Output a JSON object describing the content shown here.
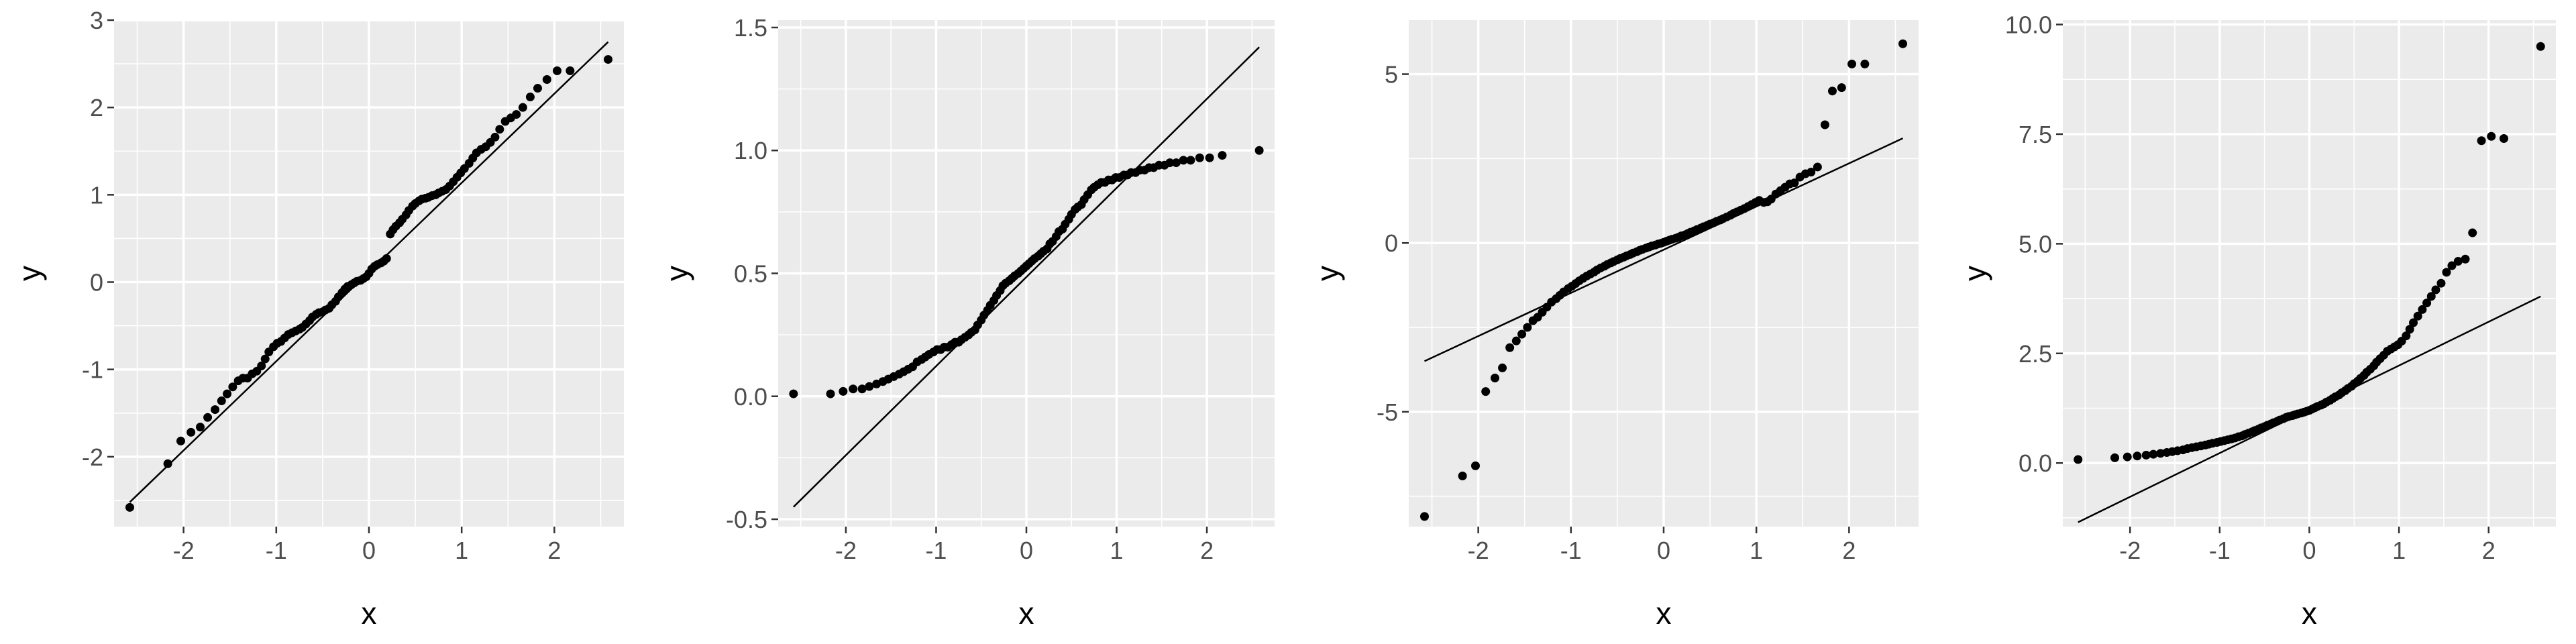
{
  "chart_data": [
    {
      "type": "scatter",
      "kind": "qq-plot",
      "xlabel": "x",
      "ylabel": "y",
      "xlim": [
        -2.75,
        2.75
      ],
      "ylim": [
        -2.8,
        3.0
      ],
      "xticks": [
        -2,
        -1,
        0,
        1,
        2
      ],
      "xtick_labels": [
        "-2",
        "-1",
        "0",
        "1",
        "2"
      ],
      "yticks": [
        -2,
        -1,
        0,
        1,
        2,
        3
      ],
      "ytick_labels": [
        "-2",
        "-1",
        "0",
        "1",
        "2",
        "3"
      ],
      "grid": true,
      "reference_line": {
        "x": [
          -2.58,
          2.58
        ],
        "y": [
          -2.52,
          2.75
        ]
      },
      "points": {
        "x": [
          -2.58,
          -2.17,
          -2.03,
          -1.92,
          -1.82,
          -1.74,
          -1.66,
          -1.59,
          -1.53,
          -1.47,
          -1.41,
          -1.36,
          -1.31,
          -1.26,
          -1.21,
          -1.16,
          -1.12,
          -1.08,
          -1.03,
          -0.99,
          -0.95,
          -0.91,
          -0.87,
          -0.83,
          -0.79,
          -0.75,
          -0.72,
          -0.68,
          -0.64,
          -0.61,
          -0.57,
          -0.54,
          -0.5,
          -0.47,
          -0.43,
          -0.4,
          -0.36,
          -0.33,
          -0.29,
          -0.26,
          -0.23,
          -0.19,
          -0.16,
          -0.13,
          -0.09,
          -0.06,
          -0.03,
          0.0,
          0.03,
          0.06,
          0.09,
          0.13,
          0.16,
          0.19,
          0.23,
          0.26,
          0.29,
          0.33,
          0.36,
          0.4,
          0.43,
          0.47,
          0.5,
          0.54,
          0.57,
          0.61,
          0.64,
          0.68,
          0.72,
          0.75,
          0.79,
          0.83,
          0.87,
          0.91,
          0.95,
          0.99,
          1.03,
          1.08,
          1.12,
          1.16,
          1.21,
          1.26,
          1.31,
          1.36,
          1.41,
          1.47,
          1.53,
          1.59,
          1.66,
          1.74,
          1.82,
          1.92,
          2.03,
          2.17,
          2.58
        ],
        "y": [
          -2.58,
          -2.08,
          -1.82,
          -1.72,
          -1.66,
          -1.55,
          -1.46,
          -1.36,
          -1.28,
          -1.2,
          -1.13,
          -1.1,
          -1.1,
          -1.05,
          -1.02,
          -0.96,
          -0.88,
          -0.8,
          -0.74,
          -0.7,
          -0.68,
          -0.64,
          -0.6,
          -0.58,
          -0.56,
          -0.54,
          -0.52,
          -0.48,
          -0.44,
          -0.4,
          -0.37,
          -0.35,
          -0.34,
          -0.32,
          -0.3,
          -0.26,
          -0.22,
          -0.17,
          -0.12,
          -0.08,
          -0.05,
          -0.03,
          -0.01,
          0.01,
          0.02,
          0.04,
          0.06,
          0.1,
          0.15,
          0.18,
          0.2,
          0.22,
          0.24,
          0.27,
          0.55,
          0.6,
          0.64,
          0.68,
          0.72,
          0.77,
          0.82,
          0.87,
          0.9,
          0.93,
          0.95,
          0.96,
          0.97,
          0.99,
          1.0,
          1.02,
          1.04,
          1.06,
          1.1,
          1.15,
          1.2,
          1.25,
          1.3,
          1.36,
          1.42,
          1.48,
          1.52,
          1.55,
          1.6,
          1.66,
          1.75,
          1.84,
          1.88,
          1.92,
          2.0,
          2.12,
          2.22,
          2.32,
          2.42,
          2.42,
          2.55
        ]
      }
    },
    {
      "type": "scatter",
      "kind": "qq-plot",
      "xlabel": "x",
      "ylabel": "y",
      "xlim": [
        -2.75,
        2.75
      ],
      "ylim": [
        -0.53,
        1.53
      ],
      "xticks": [
        -2,
        -1,
        0,
        1,
        2
      ],
      "xtick_labels": [
        "-2",
        "-1",
        "0",
        "1",
        "2"
      ],
      "yticks": [
        -0.5,
        0.0,
        0.5,
        1.0,
        1.5
      ],
      "ytick_labels": [
        "-0.5",
        "0.0",
        "0.5",
        "1.0",
        "1.5"
      ],
      "grid": true,
      "reference_line": {
        "x": [
          -2.58,
          2.58
        ],
        "y": [
          -0.45,
          1.42
        ]
      },
      "points": {
        "x": [
          -2.58,
          -2.17,
          -2.03,
          -1.92,
          -1.82,
          -1.74,
          -1.66,
          -1.59,
          -1.53,
          -1.47,
          -1.41,
          -1.36,
          -1.31,
          -1.26,
          -1.21,
          -1.16,
          -1.12,
          -1.08,
          -1.03,
          -0.99,
          -0.95,
          -0.91,
          -0.87,
          -0.83,
          -0.79,
          -0.75,
          -0.72,
          -0.68,
          -0.64,
          -0.61,
          -0.57,
          -0.54,
          -0.5,
          -0.47,
          -0.43,
          -0.4,
          -0.36,
          -0.33,
          -0.29,
          -0.26,
          -0.23,
          -0.19,
          -0.16,
          -0.13,
          -0.09,
          -0.06,
          -0.03,
          0.0,
          0.03,
          0.06,
          0.09,
          0.13,
          0.16,
          0.19,
          0.23,
          0.26,
          0.29,
          0.33,
          0.36,
          0.4,
          0.43,
          0.47,
          0.5,
          0.54,
          0.57,
          0.61,
          0.64,
          0.68,
          0.72,
          0.75,
          0.79,
          0.83,
          0.87,
          0.91,
          0.95,
          0.99,
          1.03,
          1.08,
          1.12,
          1.16,
          1.21,
          1.26,
          1.31,
          1.36,
          1.41,
          1.47,
          1.53,
          1.59,
          1.66,
          1.74,
          1.82,
          1.92,
          2.03,
          2.17,
          2.58
        ],
        "y": [
          0.01,
          0.01,
          0.02,
          0.03,
          0.03,
          0.04,
          0.05,
          0.06,
          0.07,
          0.08,
          0.09,
          0.1,
          0.11,
          0.12,
          0.14,
          0.15,
          0.16,
          0.17,
          0.18,
          0.19,
          0.19,
          0.2,
          0.2,
          0.21,
          0.22,
          0.22,
          0.23,
          0.24,
          0.25,
          0.26,
          0.27,
          0.29,
          0.31,
          0.33,
          0.35,
          0.37,
          0.39,
          0.41,
          0.43,
          0.45,
          0.46,
          0.47,
          0.48,
          0.49,
          0.5,
          0.51,
          0.52,
          0.53,
          0.54,
          0.55,
          0.56,
          0.57,
          0.58,
          0.59,
          0.6,
          0.62,
          0.63,
          0.65,
          0.67,
          0.68,
          0.7,
          0.72,
          0.74,
          0.76,
          0.77,
          0.78,
          0.8,
          0.82,
          0.84,
          0.85,
          0.86,
          0.87,
          0.87,
          0.88,
          0.88,
          0.89,
          0.89,
          0.9,
          0.9,
          0.91,
          0.91,
          0.92,
          0.92,
          0.93,
          0.93,
          0.94,
          0.94,
          0.95,
          0.95,
          0.96,
          0.96,
          0.97,
          0.97,
          0.98,
          1.0
        ]
      }
    },
    {
      "type": "scatter",
      "kind": "qq-plot",
      "xlabel": "x",
      "ylabel": "y",
      "xlim": [
        -2.75,
        2.75
      ],
      "ylim": [
        -8.4,
        6.6
      ],
      "xticks": [
        -2,
        -1,
        0,
        1,
        2
      ],
      "xtick_labels": [
        "-2",
        "-1",
        "0",
        "1",
        "2"
      ],
      "yticks": [
        -5,
        0,
        5
      ],
      "ytick_labels": [
        "-5",
        "0",
        "5"
      ],
      "grid": true,
      "reference_line": {
        "x": [
          -2.58,
          2.58
        ],
        "y": [
          -3.5,
          3.1
        ]
      },
      "points": {
        "x": [
          -2.58,
          -2.17,
          -2.03,
          -1.92,
          -1.82,
          -1.74,
          -1.66,
          -1.59,
          -1.53,
          -1.47,
          -1.41,
          -1.36,
          -1.31,
          -1.26,
          -1.21,
          -1.16,
          -1.12,
          -1.08,
          -1.03,
          -0.99,
          -0.95,
          -0.91,
          -0.87,
          -0.83,
          -0.79,
          -0.75,
          -0.72,
          -0.68,
          -0.64,
          -0.61,
          -0.57,
          -0.54,
          -0.5,
          -0.47,
          -0.43,
          -0.4,
          -0.36,
          -0.33,
          -0.29,
          -0.26,
          -0.23,
          -0.19,
          -0.16,
          -0.13,
          -0.09,
          -0.06,
          -0.03,
          0.0,
          0.03,
          0.06,
          0.09,
          0.13,
          0.16,
          0.19,
          0.23,
          0.26,
          0.29,
          0.33,
          0.36,
          0.4,
          0.43,
          0.47,
          0.5,
          0.54,
          0.57,
          0.61,
          0.64,
          0.68,
          0.72,
          0.75,
          0.79,
          0.83,
          0.87,
          0.91,
          0.95,
          0.99,
          1.03,
          1.08,
          1.12,
          1.16,
          1.21,
          1.26,
          1.31,
          1.36,
          1.41,
          1.47,
          1.53,
          1.59,
          1.66,
          1.74,
          1.82,
          1.92,
          2.03,
          2.17,
          2.58
        ],
        "y": [
          -8.1,
          -6.9,
          -6.6,
          -4.4,
          -4.0,
          -3.7,
          -3.1,
          -2.9,
          -2.7,
          -2.5,
          -2.3,
          -2.2,
          -2.05,
          -1.9,
          -1.75,
          -1.65,
          -1.55,
          -1.45,
          -1.35,
          -1.28,
          -1.2,
          -1.12,
          -1.05,
          -0.98,
          -0.92,
          -0.86,
          -0.8,
          -0.74,
          -0.69,
          -0.64,
          -0.59,
          -0.55,
          -0.5,
          -0.46,
          -0.42,
          -0.38,
          -0.34,
          -0.3,
          -0.26,
          -0.22,
          -0.19,
          -0.15,
          -0.12,
          -0.09,
          -0.06,
          -0.03,
          -0.01,
          0.02,
          0.05,
          0.08,
          0.11,
          0.14,
          0.17,
          0.21,
          0.24,
          0.28,
          0.32,
          0.36,
          0.4,
          0.44,
          0.48,
          0.52,
          0.56,
          0.6,
          0.64,
          0.68,
          0.72,
          0.77,
          0.82,
          0.87,
          0.92,
          0.97,
          1.02,
          1.08,
          1.14,
          1.2,
          1.26,
          1.2,
          1.22,
          1.3,
          1.45,
          1.55,
          1.65,
          1.75,
          1.78,
          1.95,
          2.05,
          2.1,
          2.25,
          3.5,
          4.5,
          4.6,
          5.3,
          5.3,
          5.9
        ]
      }
    },
    {
      "type": "scatter",
      "kind": "qq-plot",
      "xlabel": "x",
      "ylabel": "y",
      "xlim": [
        -2.75,
        2.75
      ],
      "ylim": [
        -1.45,
        10.1
      ],
      "xticks": [
        -2,
        -1,
        0,
        1,
        2
      ],
      "xtick_labels": [
        "-2",
        "-1",
        "0",
        "1",
        "2"
      ],
      "yticks": [
        0.0,
        2.5,
        5.0,
        7.5,
        10.0
      ],
      "ytick_labels": [
        "0.0",
        "2.5",
        "5.0",
        "7.5",
        "10.0"
      ],
      "grid": true,
      "reference_line": {
        "x": [
          -2.58,
          2.58
        ],
        "y": [
          -1.35,
          3.8
        ]
      },
      "points": {
        "x": [
          -2.58,
          -2.17,
          -2.03,
          -1.92,
          -1.82,
          -1.74,
          -1.66,
          -1.59,
          -1.53,
          -1.47,
          -1.41,
          -1.36,
          -1.31,
          -1.26,
          -1.21,
          -1.16,
          -1.12,
          -1.08,
          -1.03,
          -0.99,
          -0.95,
          -0.91,
          -0.87,
          -0.83,
          -0.79,
          -0.75,
          -0.72,
          -0.68,
          -0.64,
          -0.61,
          -0.57,
          -0.54,
          -0.5,
          -0.47,
          -0.43,
          -0.4,
          -0.36,
          -0.33,
          -0.29,
          -0.26,
          -0.23,
          -0.19,
          -0.16,
          -0.13,
          -0.09,
          -0.06,
          -0.03,
          0.0,
          0.03,
          0.06,
          0.09,
          0.13,
          0.16,
          0.19,
          0.23,
          0.26,
          0.29,
          0.33,
          0.36,
          0.4,
          0.43,
          0.47,
          0.5,
          0.54,
          0.57,
          0.61,
          0.64,
          0.68,
          0.72,
          0.75,
          0.79,
          0.83,
          0.87,
          0.91,
          0.95,
          0.99,
          1.03,
          1.08,
          1.12,
          1.16,
          1.21,
          1.26,
          1.31,
          1.36,
          1.41,
          1.47,
          1.53,
          1.59,
          1.66,
          1.74,
          1.82,
          1.92,
          2.03,
          2.17,
          2.58
        ],
        "y": [
          0.08,
          0.12,
          0.14,
          0.16,
          0.18,
          0.2,
          0.22,
          0.24,
          0.26,
          0.28,
          0.3,
          0.33,
          0.35,
          0.37,
          0.39,
          0.41,
          0.43,
          0.45,
          0.47,
          0.49,
          0.51,
          0.53,
          0.55,
          0.57,
          0.6,
          0.62,
          0.65,
          0.68,
          0.71,
          0.74,
          0.77,
          0.8,
          0.83,
          0.86,
          0.89,
          0.92,
          0.95,
          0.98,
          1.01,
          1.04,
          1.06,
          1.08,
          1.1,
          1.12,
          1.14,
          1.16,
          1.18,
          1.2,
          1.23,
          1.26,
          1.29,
          1.32,
          1.35,
          1.39,
          1.43,
          1.47,
          1.51,
          1.55,
          1.6,
          1.65,
          1.7,
          1.75,
          1.81,
          1.87,
          1.93,
          2.0,
          2.07,
          2.14,
          2.22,
          2.3,
          2.38,
          2.46,
          2.55,
          2.6,
          2.65,
          2.7,
          2.78,
          2.9,
          3.05,
          3.2,
          3.35,
          3.5,
          3.65,
          3.8,
          3.95,
          4.1,
          4.35,
          4.5,
          4.6,
          4.65,
          5.25,
          7.35,
          7.45,
          7.4,
          9.5
        ]
      }
    }
  ]
}
